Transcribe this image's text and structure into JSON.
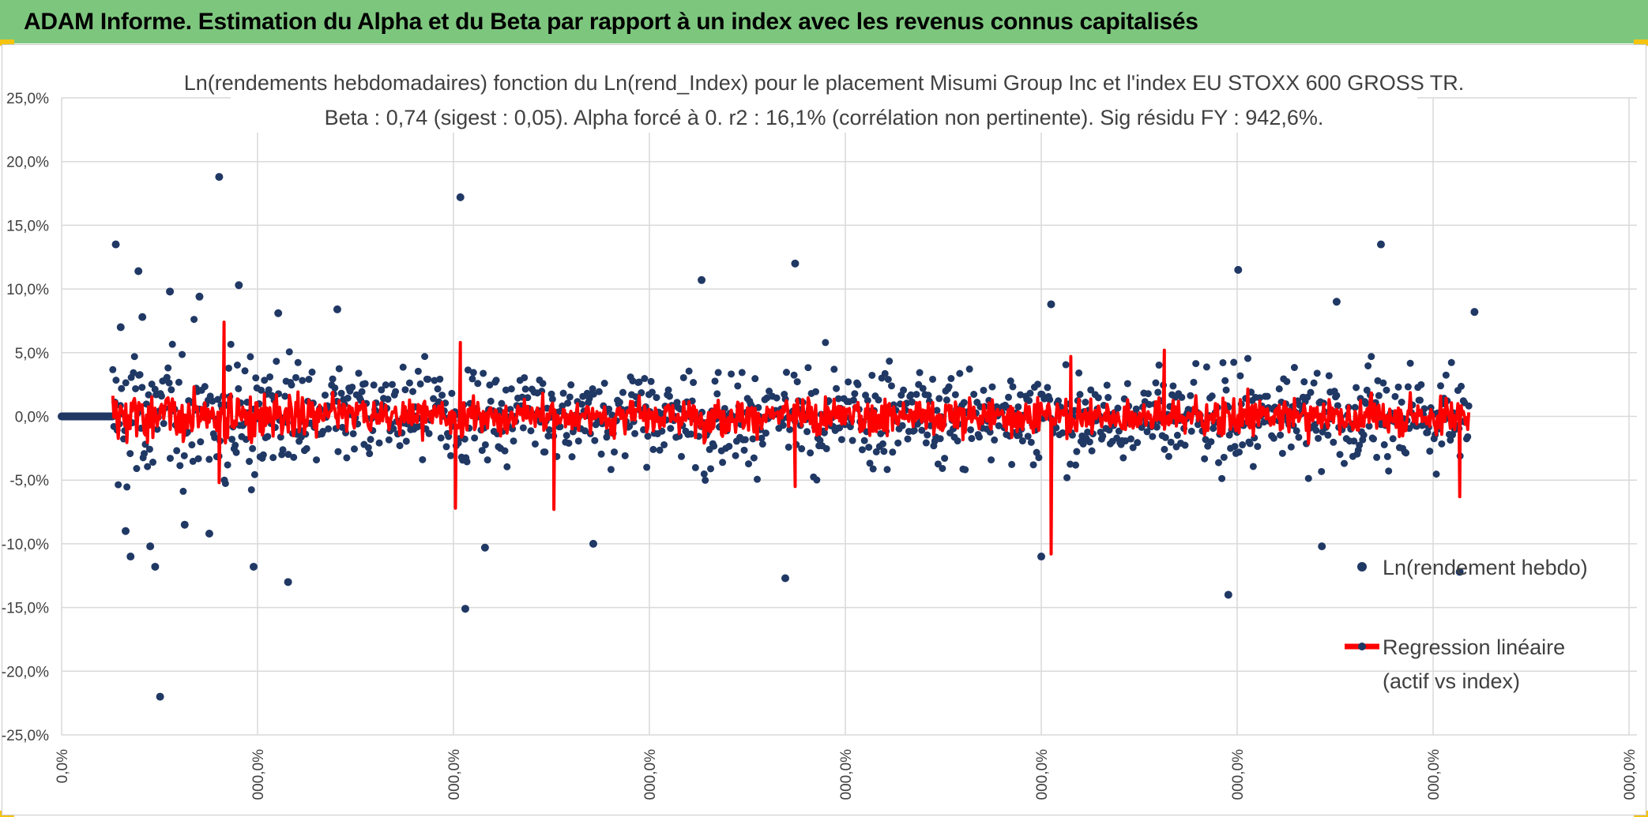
{
  "banner": {
    "title": "ADAM Informe. Estimation du Alpha et du Beta par rapport à un index avec les revenus connus capitalisés"
  },
  "colors": {
    "banner_bg": "#7dc67e",
    "corner_accent": "#f5c40f",
    "scatter": "#203864",
    "regression": "#ff0000",
    "grid": "#d9d9d9"
  },
  "chart_data": {
    "type": "scatter",
    "title_line1": "Ln(rendements hebdomadaires) fonction du Ln(rend_Index) pour le placement Misumi Group Inc et l'index EU STOXX 600 GROSS TR.",
    "title_line2": "Beta : 0,74 (sigest : 0,05). Alpha forcé à 0. r2 : 16,1% (corrélation non pertinente). Sig résidu FY : 942,6%.",
    "ylim": [
      -25,
      25
    ],
    "y_ticks": [
      "25,0%",
      "20,0%",
      "15,0%",
      "10,0%",
      "5,0%",
      "0,0%",
      "-5,0%",
      "-10,0%",
      "-15,0%",
      "-20,0%",
      "-25,0%"
    ],
    "x_ticks": [
      "0,0%",
      "000,0%",
      "000,0%",
      "000,0%",
      "000,0%",
      "000,0%",
      "000,0%",
      "000,0%",
      "000,0%"
    ],
    "grid": true,
    "legend_position": "right",
    "series": [
      {
        "name": "Ln(rendement hebdo)",
        "kind": "scatter",
        "notable_points": [
          {
            "x": 0.55,
            "y": 13.5
          },
          {
            "x": 0.6,
            "y": 7.0
          },
          {
            "x": 0.65,
            "y": -9.0
          },
          {
            "x": 0.7,
            "y": -11.0
          },
          {
            "x": 0.78,
            "y": 11.4
          },
          {
            "x": 0.82,
            "y": 7.8
          },
          {
            "x": 0.9,
            "y": -10.2
          },
          {
            "x": 0.95,
            "y": -11.8
          },
          {
            "x": 1.0,
            "y": -22.0
          },
          {
            "x": 1.1,
            "y": 9.8
          },
          {
            "x": 1.25,
            "y": -8.5
          },
          {
            "x": 1.4,
            "y": 9.4
          },
          {
            "x": 1.5,
            "y": -9.2
          },
          {
            "x": 1.6,
            "y": 18.8
          },
          {
            "x": 1.8,
            "y": 10.3
          },
          {
            "x": 1.95,
            "y": -11.8
          },
          {
            "x": 2.2,
            "y": 8.1
          },
          {
            "x": 2.3,
            "y": -13.0
          },
          {
            "x": 2.8,
            "y": 8.4
          },
          {
            "x": 4.05,
            "y": 17.2
          },
          {
            "x": 4.1,
            "y": -15.1
          },
          {
            "x": 4.3,
            "y": -10.3
          },
          {
            "x": 5.4,
            "y": -10.0
          },
          {
            "x": 6.5,
            "y": 10.7
          },
          {
            "x": 7.35,
            "y": -12.7
          },
          {
            "x": 7.45,
            "y": 12.0
          },
          {
            "x": 9.95,
            "y": -11.0
          },
          {
            "x": 10.05,
            "y": 8.8
          },
          {
            "x": 11.85,
            "y": -14.0
          },
          {
            "x": 11.95,
            "y": 11.5
          },
          {
            "x": 12.8,
            "y": -10.2
          },
          {
            "x": 12.95,
            "y": 9.0
          },
          {
            "x": 13.4,
            "y": 13.5
          },
          {
            "x": 14.2,
            "y": -12.2
          },
          {
            "x": 14.35,
            "y": 8.2
          }
        ]
      },
      {
        "name": "Regression linéaire (actif vs index)",
        "kind": "line",
        "notable_points": [
          {
            "x": 1.65,
            "y": 7.4
          },
          {
            "x": 1.6,
            "y": -5.2
          },
          {
            "x": 4.05,
            "y": 5.8
          },
          {
            "x": 4.0,
            "y": -7.2
          },
          {
            "x": 5.0,
            "y": -7.3
          },
          {
            "x": 7.45,
            "y": -5.5
          },
          {
            "x": 10.05,
            "y": -10.8
          },
          {
            "x": 10.25,
            "y": 4.7
          },
          {
            "x": 11.2,
            "y": 5.2
          },
          {
            "x": 14.2,
            "y": -6.3
          }
        ]
      }
    ],
    "legend": {
      "scatter_label": "Ln(rendement hebdo)",
      "line_label_1": "Regression linéaire",
      "line_label_2": "(actif vs index)"
    }
  }
}
